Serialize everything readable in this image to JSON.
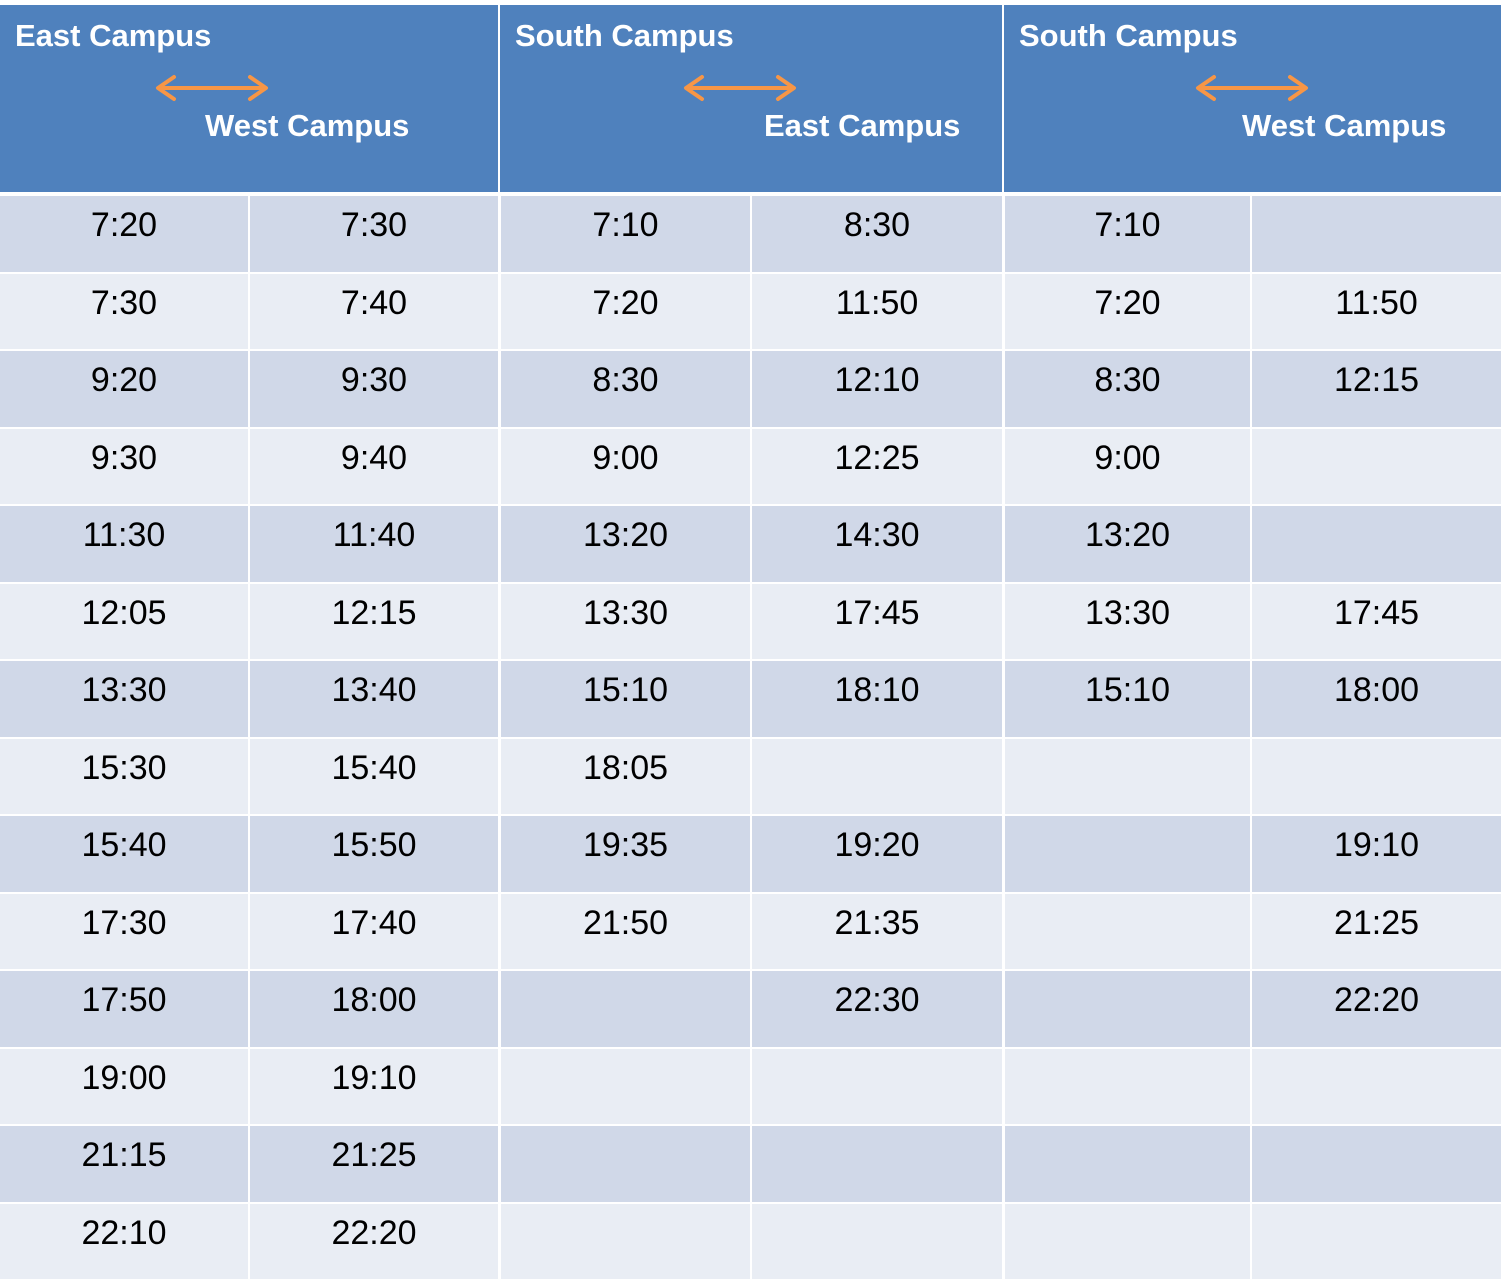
{
  "colors": {
    "header_bg": "#4f81bd",
    "row_dark": "#d0d8e8",
    "row_light": "#e9edf4",
    "arrow": "#f79646"
  },
  "headers": [
    {
      "from": "East Campus",
      "to": "West Campus",
      "icon": "double-arrow-icon"
    },
    {
      "from": "South Campus",
      "to": "East Campus",
      "icon": "double-arrow-icon"
    },
    {
      "from": "South Campus",
      "to": "West Campus",
      "icon": "double-arrow-icon"
    }
  ],
  "rows": [
    [
      "7:20",
      "7:30",
      "7:10",
      "8:30",
      "7:10",
      ""
    ],
    [
      "7:30",
      "7:40",
      "7:20",
      "11:50",
      "7:20",
      "11:50"
    ],
    [
      "9:20",
      "9:30",
      "8:30",
      "12:10",
      "8:30",
      "12:15"
    ],
    [
      "9:30",
      "9:40",
      "9:00",
      "12:25",
      "9:00",
      ""
    ],
    [
      "11:30",
      "11:40",
      "13:20",
      "14:30",
      "13:20",
      ""
    ],
    [
      "12:05",
      "12:15",
      "13:30",
      "17:45",
      "13:30",
      "17:45"
    ],
    [
      "13:30",
      "13:40",
      "15:10",
      "18:10",
      "15:10",
      "18:00"
    ],
    [
      "15:30",
      "15:40",
      "18:05",
      "",
      "",
      ""
    ],
    [
      "15:40",
      "15:50",
      "19:35",
      "19:20",
      "",
      "19:10"
    ],
    [
      "17:30",
      "17:40",
      "21:50",
      "21:35",
      "",
      "21:25"
    ],
    [
      "17:50",
      "18:00",
      "",
      "22:30",
      "",
      "22:20"
    ],
    [
      "19:00",
      "19:10",
      "",
      "",
      "",
      ""
    ],
    [
      "21:15",
      "21:25",
      "",
      "",
      "",
      ""
    ],
    [
      "22:10",
      "22:20",
      "",
      "",
      "",
      ""
    ]
  ]
}
